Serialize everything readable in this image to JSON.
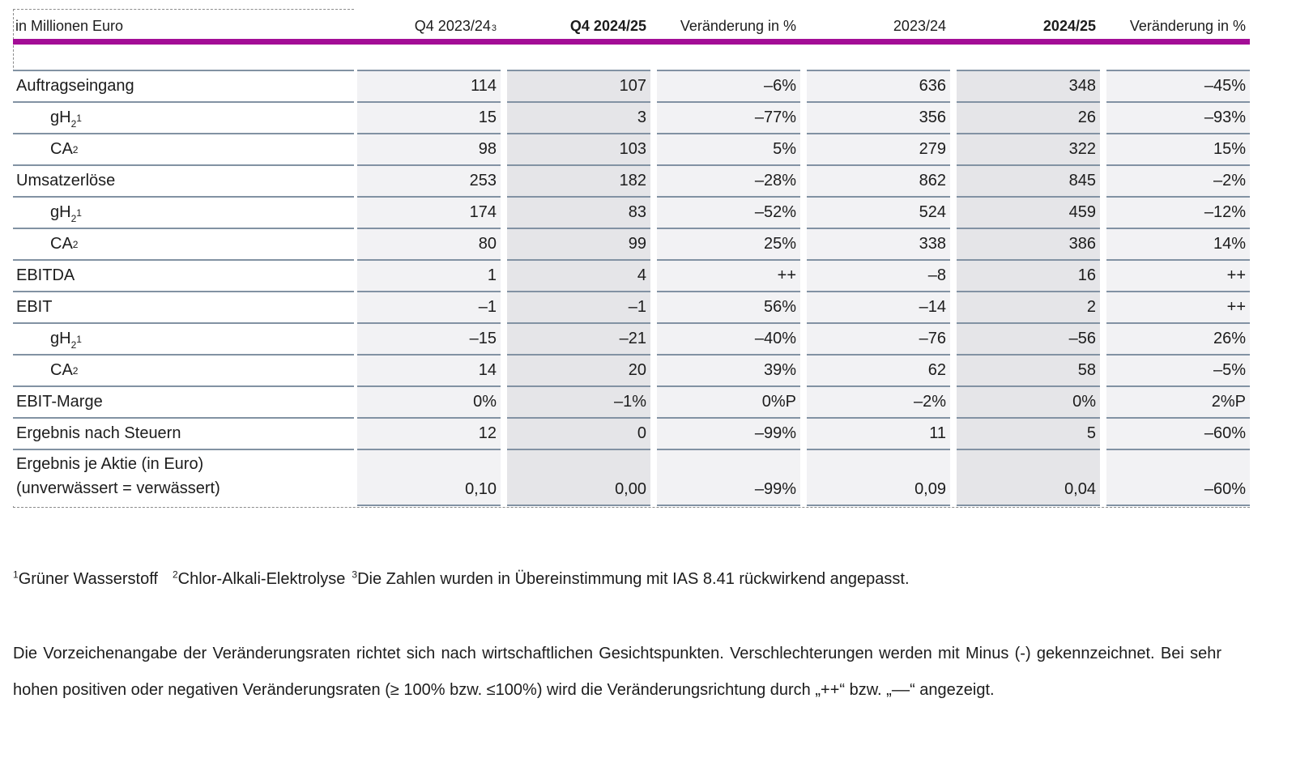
{
  "table": {
    "unit_label": "in Millionen Euro",
    "columns": [
      {
        "label": "Q4 2023/24",
        "sup": "3",
        "bold": false,
        "shade": "light"
      },
      {
        "label": "Q4 2024/25",
        "sup": "",
        "bold": true,
        "shade": "dark"
      },
      {
        "label": "Veränderung in %",
        "sup": "",
        "bold": false,
        "shade": "light"
      },
      {
        "label": "2023/24",
        "sup": "",
        "bold": false,
        "shade": "light"
      },
      {
        "label": "2024/25",
        "sup": "",
        "bold": true,
        "shade": "dark"
      },
      {
        "label": "Veränderung in %",
        "sup": "",
        "bold": false,
        "shade": "light"
      }
    ],
    "rows": [
      {
        "label": "Auftragseingang",
        "indent": 0,
        "values": [
          "114",
          "107",
          "–6%",
          "636",
          "348",
          "–45%"
        ]
      },
      {
        "label": "gH",
        "sub": "2",
        "sup": "1",
        "indent": 1,
        "values": [
          "15",
          "3",
          "–77%",
          "356",
          "26",
          "–93%"
        ]
      },
      {
        "label": "CA",
        "sup": "2",
        "indent": 1,
        "values": [
          "98",
          "103",
          "5%",
          "279",
          "322",
          "15%"
        ]
      },
      {
        "label": "Umsatzerlöse",
        "indent": 0,
        "values": [
          "253",
          "182",
          "–28%",
          "862",
          "845",
          "–2%"
        ]
      },
      {
        "label": "gH",
        "sub": "2",
        "sup": "1",
        "indent": 1,
        "values": [
          "174",
          "83",
          "–52%",
          "524",
          "459",
          "–12%"
        ]
      },
      {
        "label": "CA",
        "sup": "2",
        "indent": 1,
        "values": [
          "80",
          "99",
          "25%",
          "338",
          "386",
          "14%"
        ]
      },
      {
        "label": "EBITDA",
        "indent": 0,
        "values": [
          "1",
          "4",
          "++",
          "–8",
          "16",
          "++"
        ]
      },
      {
        "label": "EBIT",
        "indent": 0,
        "values": [
          "–1",
          "–1",
          "56%",
          "–14",
          "2",
          "++"
        ]
      },
      {
        "label": "gH",
        "sub": "2",
        "sup": "1",
        "indent": 1,
        "values": [
          "–15",
          "–21",
          "–40%",
          "–76",
          "–56",
          "26%"
        ]
      },
      {
        "label": "CA",
        "sup": "2",
        "indent": 1,
        "values": [
          "14",
          "20",
          "39%",
          "62",
          "58",
          "–5%"
        ]
      },
      {
        "label": "EBIT-Marge",
        "indent": 0,
        "values": [
          "0%",
          "–1%",
          "0%P",
          "–2%",
          "0%",
          "2%P"
        ]
      },
      {
        "label": "Ergebnis nach Steuern",
        "indent": 0,
        "values": [
          "12",
          "0",
          "–99%",
          "11",
          "5",
          "–60%"
        ]
      },
      {
        "label": "Ergebnis je Aktie (in Euro)",
        "label_line2": "(unverwässert = verwässert)",
        "indent": 0,
        "tall": true,
        "values": [
          "0,10",
          "0,00",
          "–99%",
          "0,09",
          "0,04",
          "–60%"
        ]
      }
    ]
  },
  "footnotes": [
    {
      "sup": "1",
      "text": "Grüner Wasserstoff"
    },
    {
      "sup": "2",
      "text": "Chlor-Alkali-Elektrolyse"
    },
    {
      "sup": "3",
      "text": "Die Zahlen wurden in Übereinstimmung mit IAS 8.41 rückwirkend angepasst."
    }
  ],
  "note_paragraph": "Die Vorzeichenangabe der Veränderungsraten richtet sich nach wirtschaftlichen Gesichtspunkten. Verschlechterungen werden mit Minus (-) gekennzeichnet. Bei sehr hohen positiven oder negativen Veränderungsraten (≥ 100% bzw. ≤100%) wird die Veränderungsrichtung durch „++“ bzw. „––“ angezeigt.",
  "colors": {
    "accent_bar": "#a30d96",
    "separator": "#8292a3",
    "shade_light": "#f2f2f4",
    "shade_dark": "#e5e5e8"
  }
}
